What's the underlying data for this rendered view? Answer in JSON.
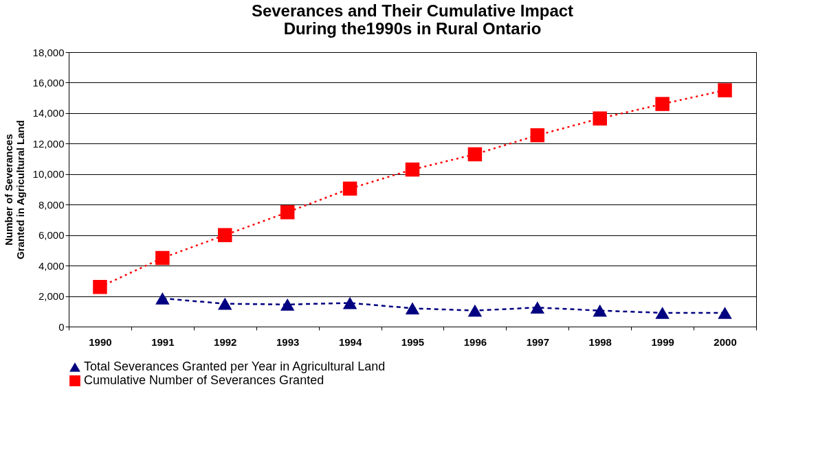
{
  "chart_data": {
    "type": "line",
    "title": "Severances and Their Cumulative Impact During the1990s in Rural Ontario",
    "ylabel": "Number of Severances Granted in Agricultural Land",
    "categories": [
      "1990",
      "1991",
      "1992",
      "1993",
      "1994",
      "1995",
      "1996",
      "1997",
      "1998",
      "1999",
      "2000"
    ],
    "series": [
      {
        "name": "Total Severances Granted per Year in Agricultural Land",
        "color": "#000080",
        "marker": "triangle",
        "line_style": "dashed",
        "values": [
          null,
          1850,
          1500,
          1450,
          1550,
          1200,
          1050,
          1250,
          1050,
          900,
          900
        ]
      },
      {
        "name": "Cumulative Number of Severances Granted",
        "color": "#ff0000",
        "marker": "square",
        "line_style": "dotted",
        "values": [
          2600,
          4500,
          6000,
          7500,
          9050,
          10300,
          11300,
          12550,
          13650,
          14600,
          15500
        ]
      }
    ],
    "ylim": [
      0,
      18000
    ],
    "yticks": [
      0,
      {
        "value": 2000,
        "label": "2,000"
      },
      {
        "value": 4000,
        "label": "4,000"
      },
      {
        "value": 6000,
        "label": "6,000"
      },
      {
        "value": 8000,
        "label": "8,000"
      },
      {
        "value": 10000,
        "label": "10,000"
      },
      {
        "value": 12000,
        "label": "12,000"
      },
      {
        "value": 14000,
        "label": "14,000"
      },
      {
        "value": 16000,
        "label": "16,000"
      },
      {
        "value": 18000,
        "label": "18,000"
      }
    ],
    "grid": "y",
    "legend": "bottom"
  }
}
